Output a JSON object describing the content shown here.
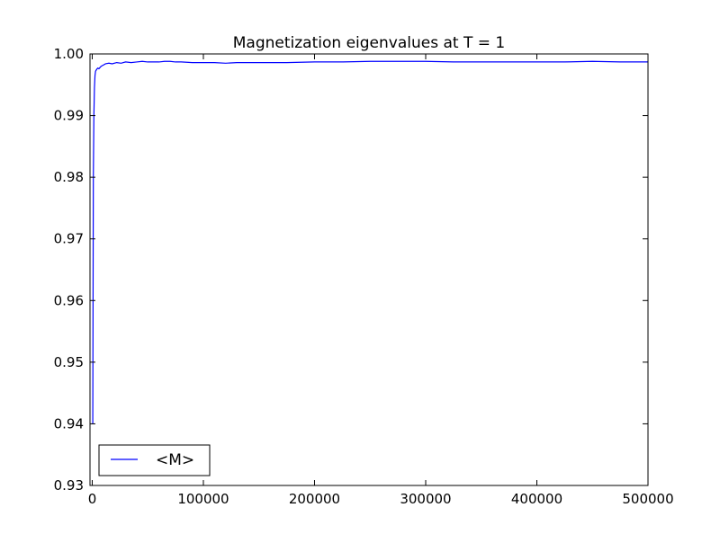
{
  "chart_data": {
    "type": "line",
    "title": "Magnetization eigenvalues at T = 1",
    "xlabel": "",
    "ylabel": "",
    "xlim": [
      -2000,
      500000
    ],
    "ylim": [
      0.93,
      1.0
    ],
    "x_ticks": [
      0,
      100000,
      200000,
      300000,
      400000,
      500000
    ],
    "x_tick_labels": [
      "0",
      "100000",
      "200000",
      "300000",
      "400000",
      "500000"
    ],
    "y_ticks": [
      0.93,
      0.94,
      0.95,
      0.96,
      0.97,
      0.98,
      0.99,
      1.0
    ],
    "y_tick_labels": [
      "0.93",
      "0.94",
      "0.95",
      "0.96",
      "0.97",
      "0.98",
      "0.99",
      "1.00"
    ],
    "grid": false,
    "legend_position": "lower-left",
    "series": [
      {
        "name": "<M>",
        "color": "#0000ff",
        "x": [
          0,
          500,
          1000,
          1500,
          2000,
          2500,
          3000,
          4000,
          5000,
          6000,
          8000,
          10000,
          12000,
          15000,
          18000,
          22000,
          26000,
          30000,
          35000,
          40000,
          45000,
          50000,
          55000,
          60000,
          65000,
          70000,
          75000,
          80000,
          90000,
          100000,
          110000,
          120000,
          130000,
          150000,
          175000,
          200000,
          225000,
          250000,
          275000,
          300000,
          325000,
          350000,
          375000,
          400000,
          425000,
          450000,
          475000,
          500000
        ],
        "y": [
          0.94,
          0.94,
          0.98,
          0.99,
          0.9945,
          0.9965,
          0.9972,
          0.9975,
          0.9977,
          0.9976,
          0.998,
          0.9982,
          0.9984,
          0.9985,
          0.9984,
          0.9986,
          0.9985,
          0.9987,
          0.9986,
          0.9987,
          0.9988,
          0.9987,
          0.9987,
          0.9987,
          0.9988,
          0.9988,
          0.9987,
          0.9987,
          0.9986,
          0.9986,
          0.9986,
          0.9985,
          0.9986,
          0.9986,
          0.9986,
          0.9987,
          0.9987,
          0.9988,
          0.9988,
          0.9988,
          0.9987,
          0.9987,
          0.9987,
          0.9987,
          0.9987,
          0.9988,
          0.9987,
          0.9987
        ]
      }
    ]
  }
}
